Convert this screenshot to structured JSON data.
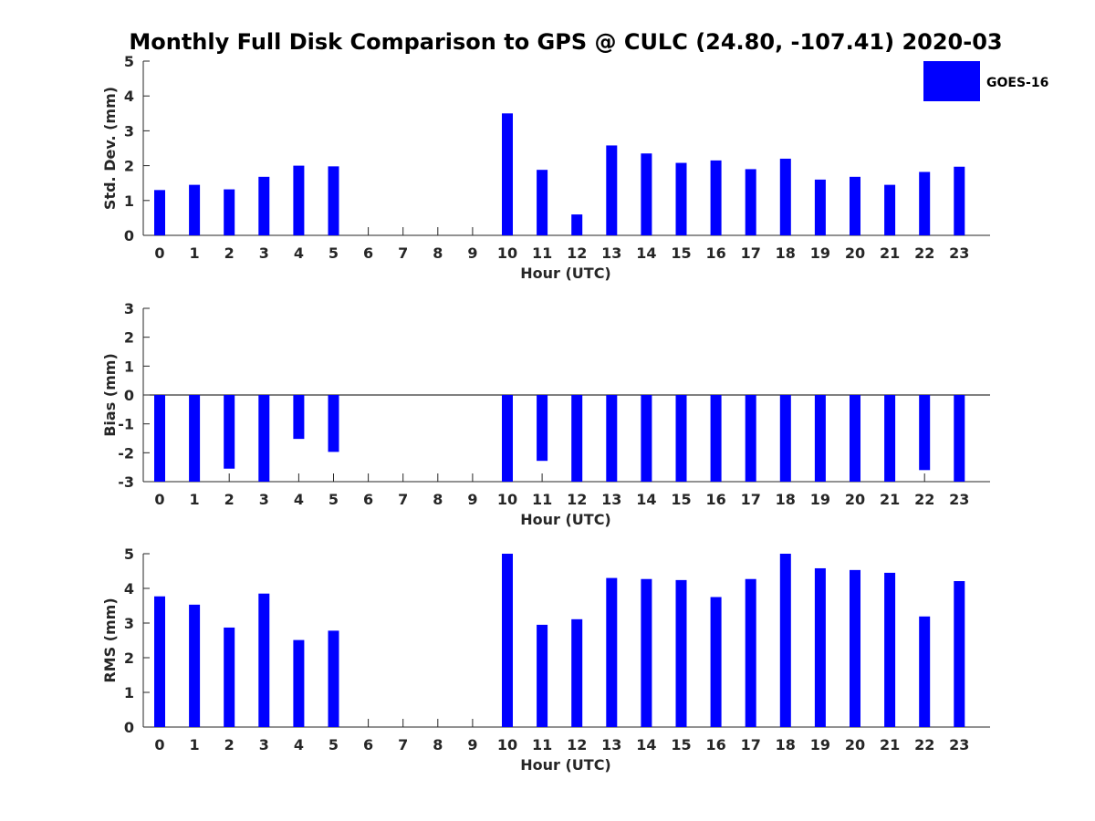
{
  "chart_data": {
    "title": "Monthly Full Disk Comparison to GPS @ CULC (24.80, -107.41) 2020-03",
    "legend": {
      "label": "GOES-16",
      "color": "#0000ff",
      "placement": "top-right"
    },
    "type": "bar",
    "panels": [
      {
        "type": "bar",
        "ylabel": "Std. Dev. (mm)",
        "xlabel": "Hour (UTC)",
        "ylim": [
          0,
          5
        ],
        "yticks": [
          0,
          1,
          2,
          3,
          4,
          5
        ],
        "categories": [
          "0",
          "1",
          "2",
          "3",
          "4",
          "5",
          "6",
          "7",
          "8",
          "9",
          "10",
          "11",
          "12",
          "13",
          "14",
          "15",
          "16",
          "17",
          "18",
          "19",
          "20",
          "21",
          "22",
          "23"
        ],
        "values": [
          1.3,
          1.45,
          1.32,
          1.68,
          2.0,
          1.98,
          null,
          null,
          null,
          null,
          3.5,
          1.88,
          0.6,
          2.58,
          2.35,
          2.08,
          2.15,
          1.9,
          2.2,
          1.6,
          1.68,
          1.45,
          1.82,
          1.97
        ]
      },
      {
        "type": "bar",
        "ylabel": "Bias (mm)",
        "xlabel": "Hour (UTC)",
        "ylim": [
          -3,
          3
        ],
        "yticks": [
          -3,
          -2,
          -1,
          0,
          1,
          2,
          3
        ],
        "zero_line": true,
        "categories": [
          "0",
          "1",
          "2",
          "3",
          "4",
          "5",
          "6",
          "7",
          "8",
          "9",
          "10",
          "11",
          "12",
          "13",
          "14",
          "15",
          "16",
          "17",
          "18",
          "19",
          "20",
          "21",
          "22",
          "23"
        ],
        "values": [
          -3.0,
          -3.0,
          -2.55,
          -3.0,
          -1.52,
          -1.97,
          null,
          null,
          null,
          null,
          -3.0,
          -2.28,
          -3.0,
          -3.0,
          -3.0,
          -3.0,
          -3.0,
          -3.0,
          -3.0,
          -3.0,
          -3.0,
          -3.0,
          -2.6,
          -3.0
        ]
      },
      {
        "type": "bar",
        "ylabel": "RMS (mm)",
        "xlabel": "Hour (UTC)",
        "ylim": [
          0,
          5
        ],
        "yticks": [
          0,
          1,
          2,
          3,
          4,
          5
        ],
        "categories": [
          "0",
          "1",
          "2",
          "3",
          "4",
          "5",
          "6",
          "7",
          "8",
          "9",
          "10",
          "11",
          "12",
          "13",
          "14",
          "15",
          "16",
          "17",
          "18",
          "19",
          "20",
          "21",
          "22",
          "23"
        ],
        "values": [
          3.77,
          3.53,
          2.87,
          3.85,
          2.51,
          2.78,
          null,
          null,
          null,
          null,
          5.0,
          2.95,
          3.11,
          4.3,
          4.27,
          4.24,
          3.75,
          4.27,
          5.0,
          4.58,
          4.53,
          4.45,
          3.19,
          4.21
        ]
      }
    ]
  }
}
